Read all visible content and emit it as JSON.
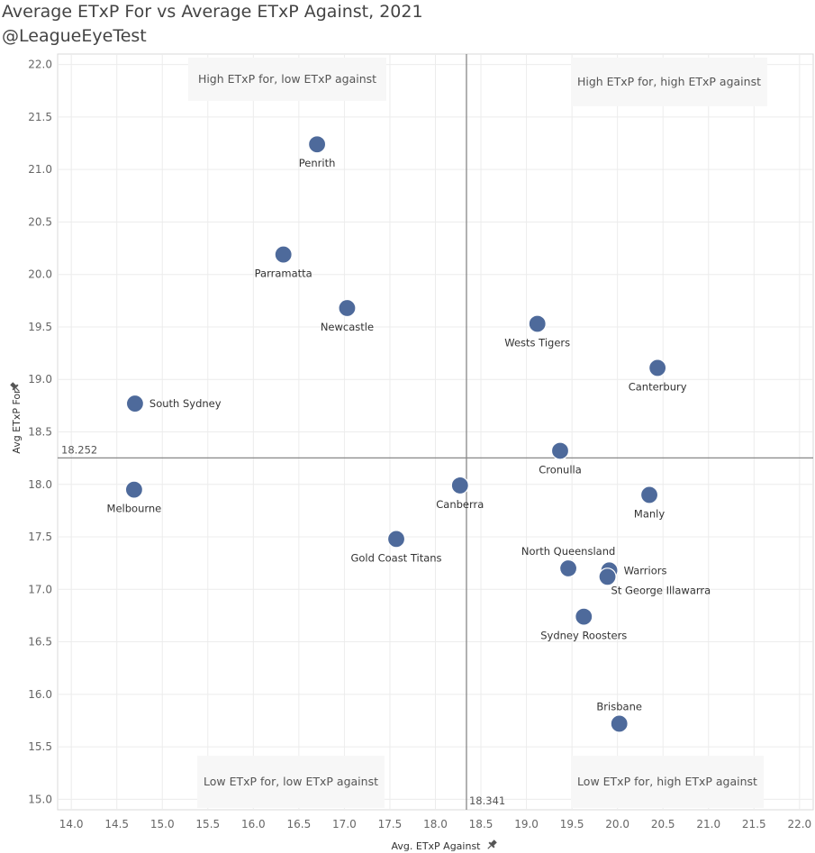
{
  "chart_data": {
    "type": "scatter",
    "title": "Average ETxP For vs Average ETxP Against, 2021",
    "subtitle": "@LeagueEyeTest",
    "xlabel": "Avg. ETxP Against",
    "ylabel": "Avg ETxP For",
    "xlim": [
      13.85,
      22.15
    ],
    "ylim": [
      14.9,
      22.1
    ],
    "xticks": [
      14.0,
      14.5,
      15.0,
      15.5,
      16.0,
      16.5,
      17.0,
      17.5,
      18.0,
      18.5,
      19.0,
      19.5,
      20.0,
      20.5,
      21.0,
      21.5,
      22.0
    ],
    "yticks": [
      15.0,
      15.5,
      16.0,
      16.5,
      17.0,
      17.5,
      18.0,
      18.5,
      19.0,
      19.5,
      20.0,
      20.5,
      21.0,
      21.5,
      22.0
    ],
    "grid": true,
    "point_color": "#4e6a9b",
    "reference_lines": {
      "x": {
        "value": 18.341,
        "label": "18.341"
      },
      "y": {
        "value": 18.252,
        "label": "18.252"
      }
    },
    "quadrant_labels": {
      "top_left": "High ETxP for, low ETxP against",
      "top_right": "High ETxP for, high ETxP against",
      "bottom_left": "Low ETxP for, low ETxP against",
      "bottom_right": "Low ETxP for, high ETxP against"
    },
    "points": [
      {
        "name": "Penrith",
        "x": 16.7,
        "y": 21.24,
        "label_pos": "below"
      },
      {
        "name": "Parramatta",
        "x": 16.33,
        "y": 20.19,
        "label_pos": "below"
      },
      {
        "name": "Newcastle",
        "x": 17.03,
        "y": 19.68,
        "label_pos": "below"
      },
      {
        "name": "Wests Tigers",
        "x": 19.12,
        "y": 19.53,
        "label_pos": "below"
      },
      {
        "name": "Canterbury",
        "x": 20.44,
        "y": 19.11,
        "label_pos": "below"
      },
      {
        "name": "South Sydney",
        "x": 14.7,
        "y": 18.77,
        "label_pos": "right"
      },
      {
        "name": "Cronulla",
        "x": 19.37,
        "y": 18.32,
        "label_pos": "below"
      },
      {
        "name": "Melbourne",
        "x": 14.69,
        "y": 17.95,
        "label_pos": "below"
      },
      {
        "name": "Canberra",
        "x": 18.27,
        "y": 17.99,
        "label_pos": "below"
      },
      {
        "name": "Manly",
        "x": 20.35,
        "y": 17.9,
        "label_pos": "below"
      },
      {
        "name": "Gold Coast Titans",
        "x": 17.57,
        "y": 17.48,
        "label_pos": "below"
      },
      {
        "name": "North Queensland",
        "x": 19.46,
        "y": 17.2,
        "label_pos": "above"
      },
      {
        "name": "Warriors",
        "x": 19.91,
        "y": 17.18,
        "label_pos": "right"
      },
      {
        "name": "St George Illawarra",
        "x": 19.89,
        "y": 17.12,
        "label_pos": "below-right"
      },
      {
        "name": "Sydney Roosters",
        "x": 19.63,
        "y": 16.74,
        "label_pos": "below"
      },
      {
        "name": "Brisbane",
        "x": 20.02,
        "y": 15.72,
        "label_pos": "above"
      }
    ]
  }
}
